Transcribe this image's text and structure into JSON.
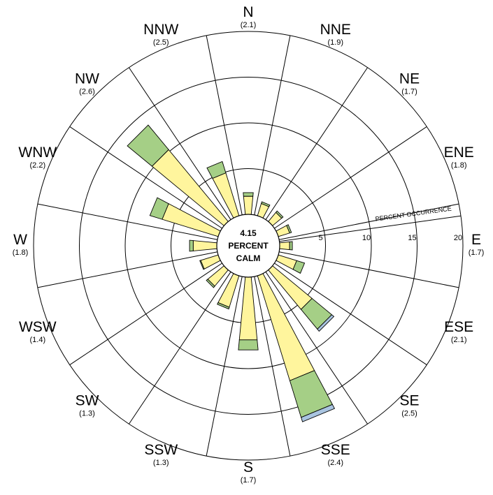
{
  "chart_data": {
    "type": "wind-rose",
    "calm": {
      "value": "4.15",
      "line1": "PERCENT",
      "line2": "CALM"
    },
    "radial_axis": {
      "title": "PERCENT OCCURRENCE",
      "ticks": [
        5,
        10,
        15,
        20
      ],
      "range": [
        0,
        20
      ]
    },
    "colors": {
      "inner": "#fff59d",
      "middle": "#a5cf86",
      "outer": "#a9c4e0",
      "stroke": "#000000"
    },
    "directions": [
      {
        "name": "N",
        "angle": 0,
        "speed": "(2.1)",
        "segments": [
          2.0,
          0.4,
          0.0
        ]
      },
      {
        "name": "NNE",
        "angle": 22.5,
        "speed": "(1.9)",
        "segments": [
          1.4,
          0.2,
          0.0
        ]
      },
      {
        "name": "NE",
        "angle": 45,
        "speed": "(1.7)",
        "segments": [
          1.3,
          0.2,
          0.0
        ]
      },
      {
        "name": "ENE",
        "angle": 67.5,
        "speed": "(1.8)",
        "segments": [
          1.3,
          0.2,
          0.0
        ]
      },
      {
        "name": "E",
        "angle": 90,
        "speed": "(1.7)",
        "segments": [
          1.1,
          0.3,
          0.0
        ]
      },
      {
        "name": "ESE",
        "angle": 112.5,
        "speed": "(2.1)",
        "segments": [
          2.1,
          0.9,
          0.0
        ]
      },
      {
        "name": "SE",
        "angle": 135,
        "speed": "(2.5)",
        "segments": [
          5.6,
          2.8,
          0.3
        ]
      },
      {
        "name": "SSE",
        "angle": 157.5,
        "speed": "(2.4)",
        "segments": [
          12.0,
          4.2,
          0.5
        ]
      },
      {
        "name": "S",
        "angle": 180,
        "speed": "(1.7)",
        "segments": [
          6.9,
          1.1,
          0.0
        ]
      },
      {
        "name": "SSW",
        "angle": 202.5,
        "speed": "(1.3)",
        "segments": [
          3.6,
          0.2,
          0.0
        ]
      },
      {
        "name": "SW",
        "angle": 225,
        "speed": "(1.3)",
        "segments": [
          2.3,
          0.2,
          0.0
        ]
      },
      {
        "name": "WSW",
        "angle": 247.5,
        "speed": "(1.4)",
        "segments": [
          2.0,
          0.1,
          0.0
        ]
      },
      {
        "name": "W",
        "angle": 270,
        "speed": "(1.8)",
        "segments": [
          2.6,
          0.4,
          0.0
        ]
      },
      {
        "name": "WNW",
        "angle": 292.5,
        "speed": "(2.2)",
        "segments": [
          6.4,
          1.4,
          0.0
        ]
      },
      {
        "name": "NW",
        "angle": 315,
        "speed": "(2.6)",
        "segments": [
          10.2,
          3.5,
          0.0
        ]
      },
      {
        "name": "NNW",
        "angle": 337.5,
        "speed": "(2.5)",
        "segments": [
          4.9,
          1.3,
          0.0
        ]
      }
    ]
  }
}
